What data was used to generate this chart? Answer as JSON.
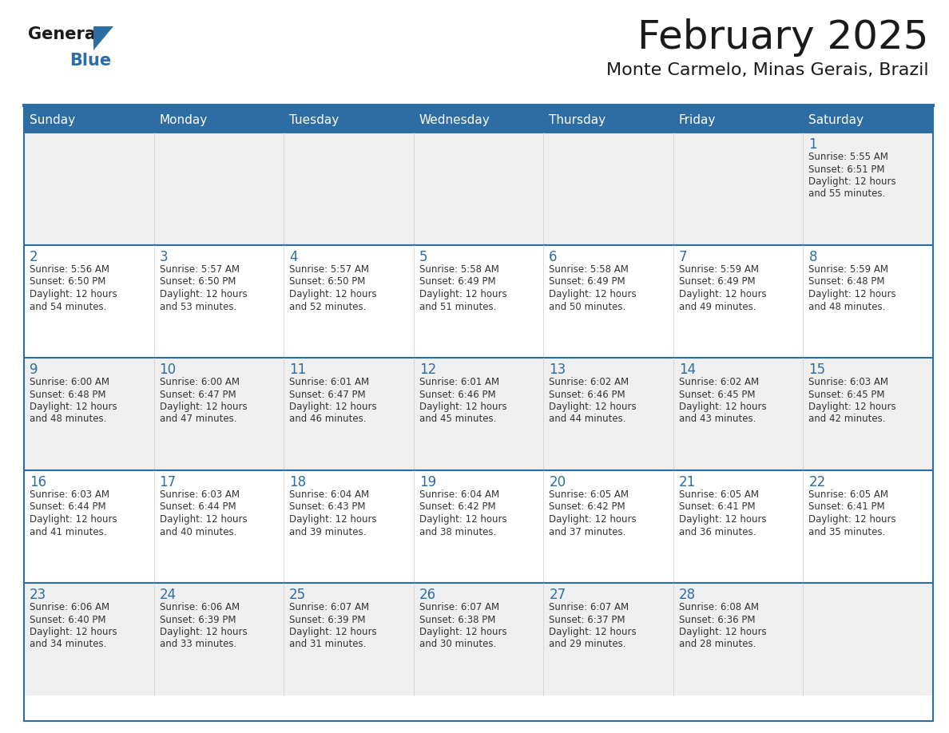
{
  "title": "February 2025",
  "subtitle": "Monte Carmelo, Minas Gerais, Brazil",
  "days_of_week": [
    "Sunday",
    "Monday",
    "Tuesday",
    "Wednesday",
    "Thursday",
    "Friday",
    "Saturday"
  ],
  "header_bg": "#2E6DA4",
  "header_text": "#FFFFFF",
  "cell_bg_light": "#EFEFEF",
  "cell_bg_white": "#FFFFFF",
  "row_border": "#2E6DA4",
  "cell_border": "#CCCCCC",
  "day_num_color": "#2E6DA4",
  "info_color": "#333333",
  "title_color": "#1A1A1A",
  "logo_general_color": "#1A1A1A",
  "logo_blue_color": "#2E6DA4",
  "calendar_data": [
    [
      null,
      null,
      null,
      null,
      null,
      null,
      {
        "day": 1,
        "sunrise": "5:55 AM",
        "sunset": "6:51 PM",
        "daylight_l1": "Daylight: 12 hours",
        "daylight_l2": "and 55 minutes."
      }
    ],
    [
      {
        "day": 2,
        "sunrise": "5:56 AM",
        "sunset": "6:50 PM",
        "daylight_l1": "Daylight: 12 hours",
        "daylight_l2": "and 54 minutes."
      },
      {
        "day": 3,
        "sunrise": "5:57 AM",
        "sunset": "6:50 PM",
        "daylight_l1": "Daylight: 12 hours",
        "daylight_l2": "and 53 minutes."
      },
      {
        "day": 4,
        "sunrise": "5:57 AM",
        "sunset": "6:50 PM",
        "daylight_l1": "Daylight: 12 hours",
        "daylight_l2": "and 52 minutes."
      },
      {
        "day": 5,
        "sunrise": "5:58 AM",
        "sunset": "6:49 PM",
        "daylight_l1": "Daylight: 12 hours",
        "daylight_l2": "and 51 minutes."
      },
      {
        "day": 6,
        "sunrise": "5:58 AM",
        "sunset": "6:49 PM",
        "daylight_l1": "Daylight: 12 hours",
        "daylight_l2": "and 50 minutes."
      },
      {
        "day": 7,
        "sunrise": "5:59 AM",
        "sunset": "6:49 PM",
        "daylight_l1": "Daylight: 12 hours",
        "daylight_l2": "and 49 minutes."
      },
      {
        "day": 8,
        "sunrise": "5:59 AM",
        "sunset": "6:48 PM",
        "daylight_l1": "Daylight: 12 hours",
        "daylight_l2": "and 48 minutes."
      }
    ],
    [
      {
        "day": 9,
        "sunrise": "6:00 AM",
        "sunset": "6:48 PM",
        "daylight_l1": "Daylight: 12 hours",
        "daylight_l2": "and 48 minutes."
      },
      {
        "day": 10,
        "sunrise": "6:00 AM",
        "sunset": "6:47 PM",
        "daylight_l1": "Daylight: 12 hours",
        "daylight_l2": "and 47 minutes."
      },
      {
        "day": 11,
        "sunrise": "6:01 AM",
        "sunset": "6:47 PM",
        "daylight_l1": "Daylight: 12 hours",
        "daylight_l2": "and 46 minutes."
      },
      {
        "day": 12,
        "sunrise": "6:01 AM",
        "sunset": "6:46 PM",
        "daylight_l1": "Daylight: 12 hours",
        "daylight_l2": "and 45 minutes."
      },
      {
        "day": 13,
        "sunrise": "6:02 AM",
        "sunset": "6:46 PM",
        "daylight_l1": "Daylight: 12 hours",
        "daylight_l2": "and 44 minutes."
      },
      {
        "day": 14,
        "sunrise": "6:02 AM",
        "sunset": "6:45 PM",
        "daylight_l1": "Daylight: 12 hours",
        "daylight_l2": "and 43 minutes."
      },
      {
        "day": 15,
        "sunrise": "6:03 AM",
        "sunset": "6:45 PM",
        "daylight_l1": "Daylight: 12 hours",
        "daylight_l2": "and 42 minutes."
      }
    ],
    [
      {
        "day": 16,
        "sunrise": "6:03 AM",
        "sunset": "6:44 PM",
        "daylight_l1": "Daylight: 12 hours",
        "daylight_l2": "and 41 minutes."
      },
      {
        "day": 17,
        "sunrise": "6:03 AM",
        "sunset": "6:44 PM",
        "daylight_l1": "Daylight: 12 hours",
        "daylight_l2": "and 40 minutes."
      },
      {
        "day": 18,
        "sunrise": "6:04 AM",
        "sunset": "6:43 PM",
        "daylight_l1": "Daylight: 12 hours",
        "daylight_l2": "and 39 minutes."
      },
      {
        "day": 19,
        "sunrise": "6:04 AM",
        "sunset": "6:42 PM",
        "daylight_l1": "Daylight: 12 hours",
        "daylight_l2": "and 38 minutes."
      },
      {
        "day": 20,
        "sunrise": "6:05 AM",
        "sunset": "6:42 PM",
        "daylight_l1": "Daylight: 12 hours",
        "daylight_l2": "and 37 minutes."
      },
      {
        "day": 21,
        "sunrise": "6:05 AM",
        "sunset": "6:41 PM",
        "daylight_l1": "Daylight: 12 hours",
        "daylight_l2": "and 36 minutes."
      },
      {
        "day": 22,
        "sunrise": "6:05 AM",
        "sunset": "6:41 PM",
        "daylight_l1": "Daylight: 12 hours",
        "daylight_l2": "and 35 minutes."
      }
    ],
    [
      {
        "day": 23,
        "sunrise": "6:06 AM",
        "sunset": "6:40 PM",
        "daylight_l1": "Daylight: 12 hours",
        "daylight_l2": "and 34 minutes."
      },
      {
        "day": 24,
        "sunrise": "6:06 AM",
        "sunset": "6:39 PM",
        "daylight_l1": "Daylight: 12 hours",
        "daylight_l2": "and 33 minutes."
      },
      {
        "day": 25,
        "sunrise": "6:07 AM",
        "sunset": "6:39 PM",
        "daylight_l1": "Daylight: 12 hours",
        "daylight_l2": "and 31 minutes."
      },
      {
        "day": 26,
        "sunrise": "6:07 AM",
        "sunset": "6:38 PM",
        "daylight_l1": "Daylight: 12 hours",
        "daylight_l2": "and 30 minutes."
      },
      {
        "day": 27,
        "sunrise": "6:07 AM",
        "sunset": "6:37 PM",
        "daylight_l1": "Daylight: 12 hours",
        "daylight_l2": "and 29 minutes."
      },
      {
        "day": 28,
        "sunrise": "6:08 AM",
        "sunset": "6:36 PM",
        "daylight_l1": "Daylight: 12 hours",
        "daylight_l2": "and 28 minutes."
      },
      null
    ]
  ]
}
